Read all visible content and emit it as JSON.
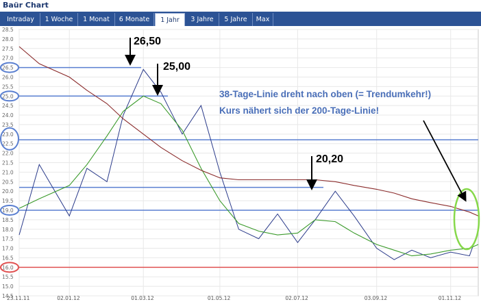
{
  "header": {
    "title": "Baür Chart"
  },
  "tabs": [
    {
      "label": "Intraday",
      "active": false
    },
    {
      "label": "1 Woche",
      "active": false
    },
    {
      "label": "1 Monat",
      "active": false
    },
    {
      "label": "6 Monate",
      "active": false
    },
    {
      "label": "1 Jahr",
      "active": true
    },
    {
      "label": "3 Jahre",
      "active": false
    },
    {
      "label": "5 Jahre",
      "active": false
    },
    {
      "label": "Max",
      "active": false
    }
  ],
  "colors": {
    "tabbar": "#2c5395",
    "price": "#2a3a8a",
    "ma38": "#3a9a2a",
    "ma200": "#8a2a2a",
    "blue_marker": "#5a7fd0",
    "red_marker": "#e05050",
    "green_marker": "#86d84a"
  },
  "chart_data": {
    "type": "line",
    "ylim": [
      14.5,
      28.5
    ],
    "y_ticks": [
      "28.5",
      "28.0",
      "27.5",
      "27.0",
      "26.5",
      "26.0",
      "25.5",
      "25.0",
      "24.5",
      "24.0",
      "23.5",
      "23.0",
      "22.5",
      "22.0",
      "21.5",
      "21.0",
      "20.5",
      "20.0",
      "19.5",
      "19.0",
      "18.5",
      "18.0",
      "17.5",
      "17.0",
      "16.5",
      "16.0",
      "15.5",
      "15.0",
      "14.5"
    ],
    "x_ticks": [
      "23.11.11",
      "02.01.12",
      "01.03.12",
      "01.05.12",
      "02.07.12",
      "03.09.12",
      "01.11.12"
    ],
    "x": [
      "2011-11-23",
      "2011-12-09",
      "2012-01-02",
      "2012-01-16",
      "2012-02-01",
      "2012-02-14",
      "2012-03-01",
      "2012-03-15",
      "2012-04-01",
      "2012-04-16",
      "2012-05-01",
      "2012-05-16",
      "2012-06-01",
      "2012-06-16",
      "2012-07-02",
      "2012-07-16",
      "2012-08-01",
      "2012-08-16",
      "2012-09-03",
      "2012-09-17",
      "2012-10-01",
      "2012-10-16",
      "2012-11-01",
      "2012-11-16",
      "2012-11-23"
    ],
    "series": [
      {
        "values": [
          17.7,
          21.4,
          18.7,
          21.2,
          20.5,
          24.0,
          26.4,
          25.2,
          23.0,
          24.5,
          21.0,
          18.0,
          17.5,
          18.8,
          17.3,
          18.5,
          20.0,
          18.7,
          17.0,
          16.4,
          16.9,
          16.5,
          16.8,
          16.6,
          17.9
        ]
      },
      {
        "values": [
          19.1,
          19.6,
          20.3,
          21.4,
          22.9,
          24.2,
          25.0,
          24.6,
          23.2,
          21.2,
          19.5,
          18.3,
          17.9,
          17.7,
          17.8,
          18.5,
          18.4,
          17.8,
          17.2,
          16.9,
          16.6,
          16.7,
          16.9,
          17.0,
          17.2
        ]
      },
      {
        "values": [
          27.6,
          26.7,
          26.0,
          25.3,
          24.6,
          23.8,
          23.0,
          22.3,
          21.6,
          21.1,
          20.7,
          20.6,
          20.6,
          20.6,
          20.6,
          20.6,
          20.5,
          20.3,
          20.1,
          19.9,
          19.6,
          19.4,
          19.2,
          18.9,
          18.7
        ]
      }
    ],
    "annotations": [
      {
        "text": "26,50",
        "value": 26.5
      },
      {
        "text": "25,00",
        "value": 25.0
      },
      {
        "text": "20,20",
        "value": 20.2
      },
      {
        "text": "38-Tage-Linie dreht nach oben (= Trendumkehr!)"
      },
      {
        "text": "Kurs nähert sich der 200-Tage-Linie!"
      }
    ],
    "hlines": [
      26.5,
      25.0,
      22.7,
      20.2,
      19.0,
      16.0
    ],
    "circled_ticks": [
      {
        "value": 26.5,
        "color": "blue"
      },
      {
        "value": 25.0,
        "color": "blue"
      },
      {
        "value": 22.75,
        "color": "blue"
      },
      {
        "value": 19.0,
        "color": "blue"
      },
      {
        "value": 16.0,
        "color": "red"
      }
    ],
    "grid": true
  }
}
